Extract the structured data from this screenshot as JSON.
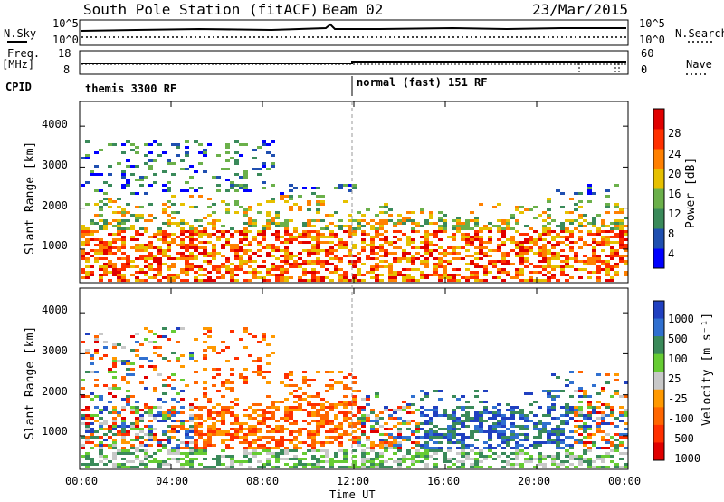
{
  "header": {
    "station": "South Pole Station (fitACF)",
    "beam": "Beam 02",
    "date": "23/Mar/2015"
  },
  "noise_panel": {
    "left_label": "N.Sky",
    "right_label": "N.Search",
    "ticks_left": [
      "10^5",
      "10^0"
    ],
    "ticks_right": [
      "10^5",
      "10^0"
    ]
  },
  "freq_panel": {
    "left_label_1": "Freq.",
    "left_label_2": "[MHz]",
    "right_label": "Nave",
    "ticks_left": [
      "18",
      "8"
    ],
    "ticks_right": [
      "60",
      "0"
    ]
  },
  "cpid": {
    "label": "CPID",
    "segments": [
      {
        "name": "themis 3300 RF"
      },
      {
        "name": "normal (fast) 151 RF"
      }
    ]
  },
  "chart_data": [
    {
      "type": "heatmap",
      "quantity": "Power",
      "ylabel": "Slant Range [km]",
      "ylim": [
        180,
        4600
      ],
      "yticks": [
        "1000",
        "2000",
        "3000",
        "4000"
      ],
      "colorbar_label": "Power [dB]",
      "colorbar_ticks": [
        "4",
        "8",
        "12",
        "16",
        "20",
        "24",
        "28"
      ],
      "colors": [
        "#0000ff",
        "#1f4fb0",
        "#3a8a5a",
        "#6bb04a",
        "#e6c000",
        "#ff8000",
        "#ff3000",
        "#e00000"
      ]
    },
    {
      "type": "heatmap",
      "quantity": "Velocity",
      "ylabel": "Slant Range [km]",
      "ylim": [
        180,
        4600
      ],
      "yticks": [
        "1000",
        "2000",
        "3000",
        "4000"
      ],
      "colorbar_label": "Velocity [m s⁻¹]",
      "colorbar_ticks": [
        "1000",
        "500",
        "100",
        "25",
        "-25",
        "-100",
        "-500",
        "-1000"
      ],
      "colors": [
        "#2040c0",
        "#3070d0",
        "#3a8a5a",
        "#66cc33",
        "#c8c8c8",
        "#ff9900",
        "#ff6600",
        "#ff3000",
        "#e00000"
      ]
    }
  ],
  "xaxis": {
    "label": "Time UT",
    "ticks": [
      "00:00",
      "04:00",
      "08:00",
      "12:00",
      "16:00",
      "20:00",
      "00:00"
    ]
  }
}
